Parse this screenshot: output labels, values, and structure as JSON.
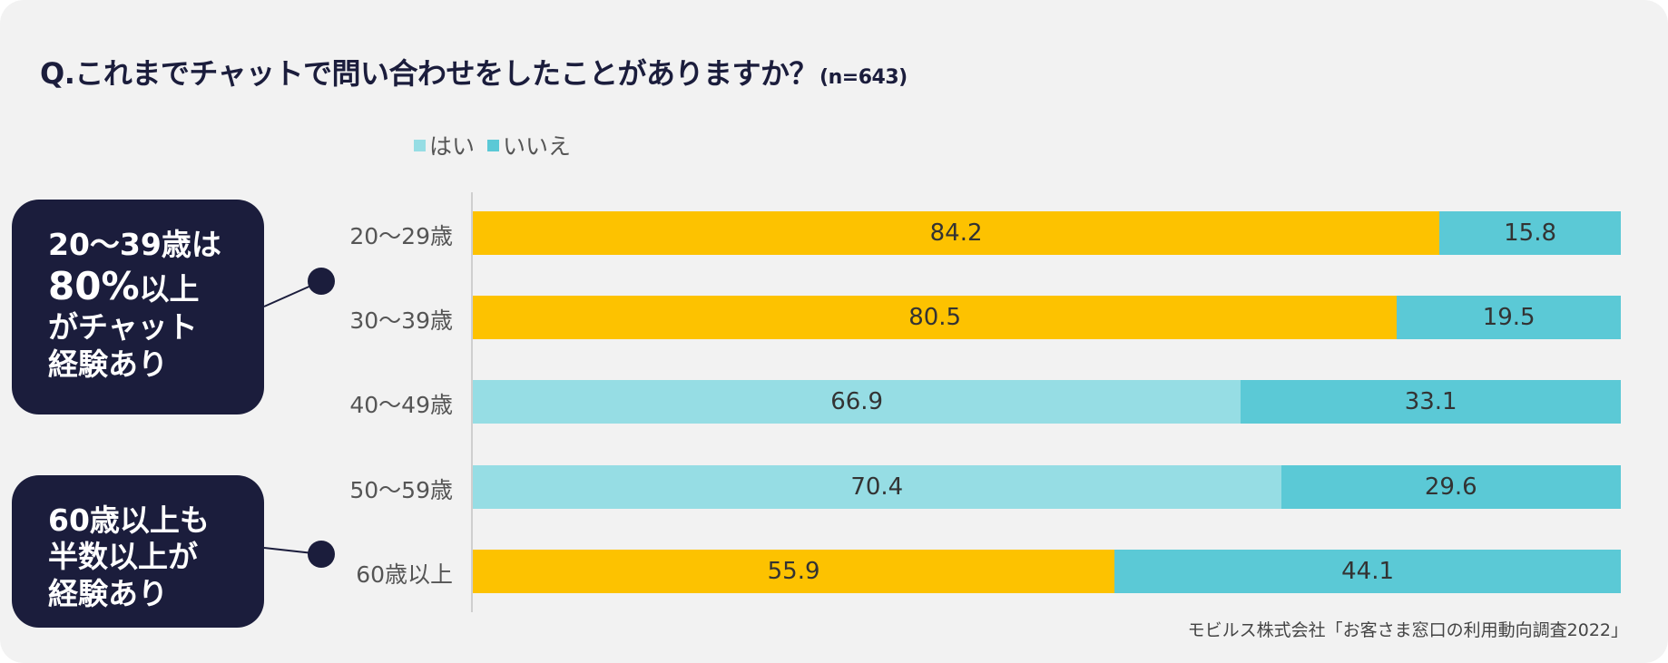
{
  "title": {
    "question": "Q.これまでチャットで問い合わせをしたことがありますか？",
    "n": "(n=643)"
  },
  "legend": [
    {
      "label": "はい",
      "color": "#96dde4"
    },
    {
      "label": "いいえ",
      "color": "#5bc9d6"
    }
  ],
  "colors": {
    "yes_highlight": "#fdc200",
    "yes": "#96dde4",
    "no": "#5bc9d6"
  },
  "callouts": {
    "top": {
      "l1": "20〜39歳は",
      "l2_big": "80%",
      "l2_small": "以上",
      "l3": "がチャット",
      "l4": "経験あり"
    },
    "bottom": {
      "l1": "60歳以上も",
      "l2": "半数以上が",
      "l3": "経験あり"
    }
  },
  "source": "モビルス株式会社「お客さま窓口の利用動向調査2022」",
  "chart_data": {
    "type": "bar",
    "orientation": "horizontal",
    "stacked": true,
    "categories": [
      "20〜29歳",
      "30〜39歳",
      "40〜49歳",
      "50〜59歳",
      "60歳以上"
    ],
    "series": [
      {
        "name": "はい",
        "values": [
          84.2,
          80.5,
          66.9,
          70.4,
          55.9
        ]
      },
      {
        "name": "いいえ",
        "values": [
          15.8,
          19.5,
          33.1,
          29.6,
          44.1
        ]
      }
    ],
    "highlighted_categories": [
      "20〜29歳",
      "30〜39歳",
      "60歳以上"
    ],
    "xlim": [
      0,
      100
    ],
    "legend_position": "top",
    "grid": false
  }
}
